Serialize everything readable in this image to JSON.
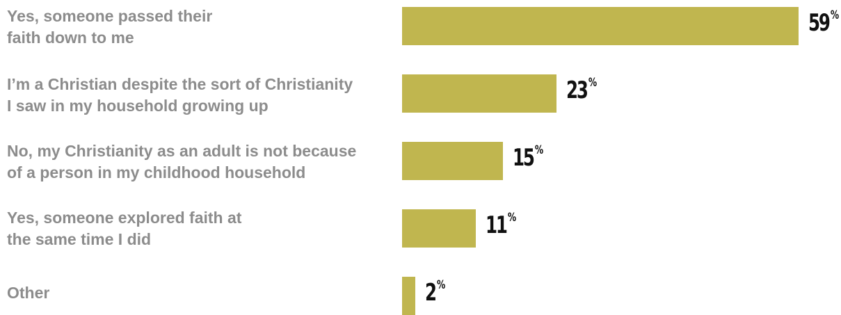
{
  "chart_data": {
    "type": "bar",
    "orientation": "horizontal",
    "categories": [
      "Yes, someone passed their\nfaith down to me",
      "I’m a Christian despite the sort of Christianity\nI saw in my household growing up",
      "No, my Christianity as an adult is not because\nof a person in my childhood household",
      "Yes, someone explored faith at\nthe same time I did",
      "Other"
    ],
    "values": [
      59,
      23,
      15,
      11,
      2
    ],
    "value_suffix": "%",
    "xlim": [
      0,
      59
    ],
    "grid": false,
    "legend": "none",
    "bar_color": "#c0b64f",
    "label_color": "#8c8c8c",
    "value_label_color": "#111111"
  }
}
